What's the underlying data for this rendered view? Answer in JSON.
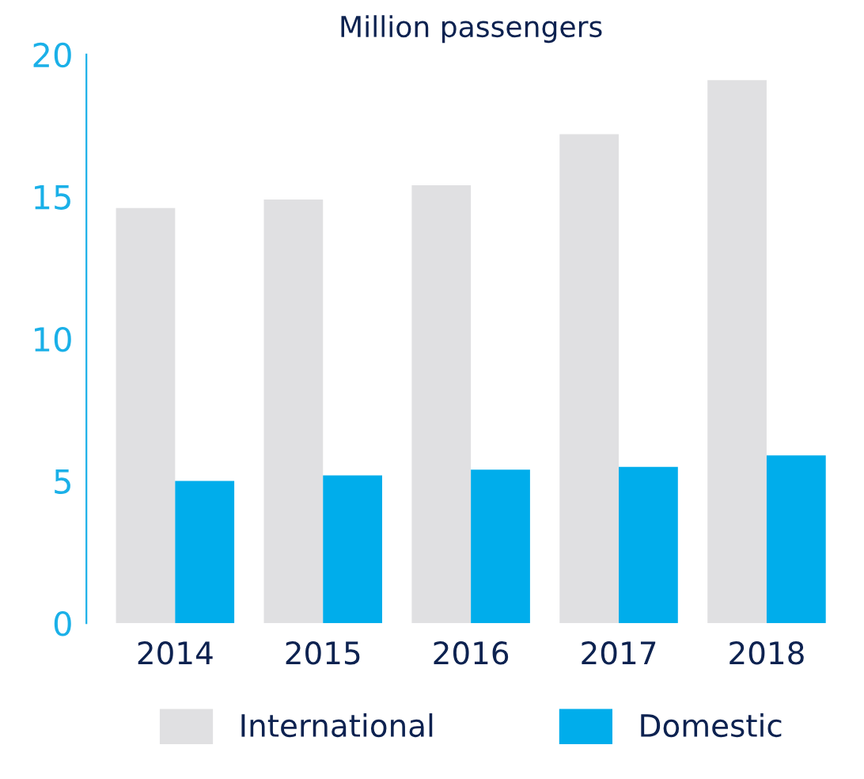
{
  "chart_data": {
    "type": "bar",
    "subtitle": "Million passengers",
    "categories": [
      "2014",
      "2015",
      "2016",
      "2017",
      "2018"
    ],
    "series": [
      {
        "name": "International",
        "color": "#e0e0e2",
        "values": [
          14.6,
          14.9,
          15.4,
          17.2,
          19.1
        ]
      },
      {
        "name": "Domestic",
        "color": "#00adeb",
        "values": [
          5.0,
          5.2,
          5.4,
          5.5,
          5.9
        ]
      }
    ],
    "ylim": [
      0,
      20
    ],
    "yticks": [
      0,
      5,
      10,
      15,
      20
    ],
    "grid": false,
    "legend": "bottom"
  }
}
